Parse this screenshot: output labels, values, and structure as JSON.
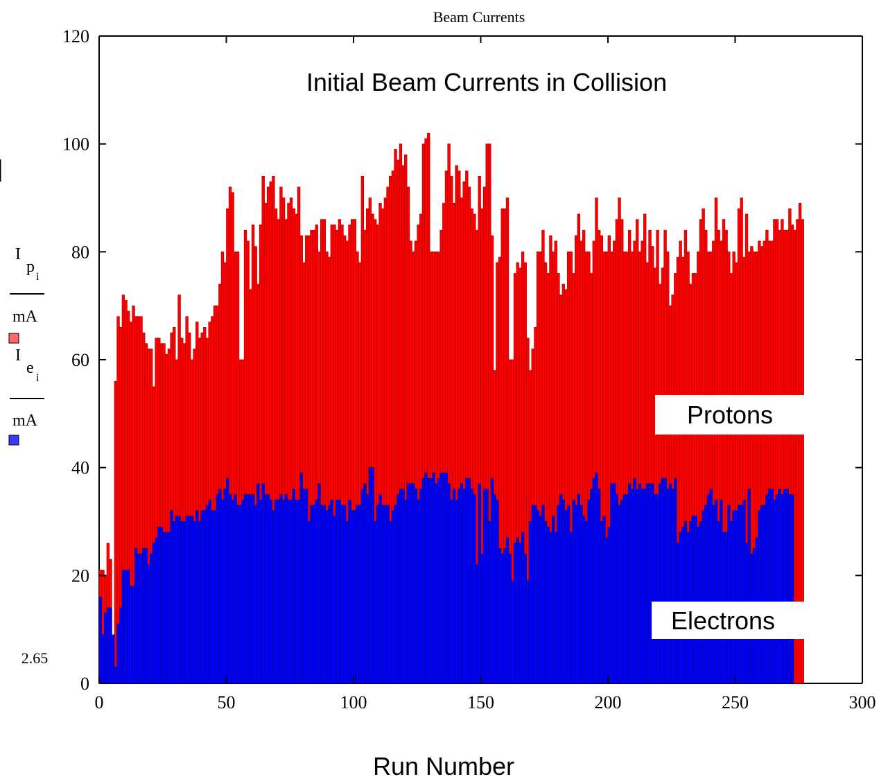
{
  "chart_data": {
    "type": "bar",
    "window_title": "Beam Currents",
    "title": "Initial Beam Currents in Collision",
    "xlabel": "Run Number",
    "ylabel": {
      "protons": {
        "symbol": "I",
        "subscript": "p",
        "index": "i",
        "unit": "mA"
      },
      "electrons": {
        "symbol": "I",
        "subscript": "e",
        "index": "i",
        "unit": "mA"
      }
    },
    "xlim": [
      0,
      300
    ],
    "ylim": [
      0,
      120
    ],
    "xticks": [
      "0",
      "50",
      "100",
      "150",
      "200",
      "250",
      "300"
    ],
    "yticks": [
      "0",
      "20",
      "40",
      "60",
      "80",
      "100",
      "120"
    ],
    "ymin_readout": "2.65",
    "grid": false,
    "overlay": true,
    "annotations": [
      "Protons",
      "Electrons"
    ],
    "series": [
      {
        "name": "Protons",
        "color": "#ff0000",
        "values": [
          21,
          21,
          20,
          26,
          23,
          6,
          56,
          68,
          66,
          72,
          71,
          69,
          67,
          70,
          68,
          68,
          68,
          65,
          63,
          62,
          62,
          55,
          64,
          64,
          63,
          63,
          61,
          62,
          65,
          66,
          60,
          72,
          64,
          63,
          68,
          65,
          60,
          62,
          67,
          64,
          65,
          66,
          64,
          67,
          68,
          70,
          70,
          74,
          80,
          78,
          88,
          92,
          91,
          80,
          80,
          60,
          60,
          84,
          82,
          73,
          85,
          81,
          74,
          85,
          94,
          89,
          92,
          93,
          94,
          88,
          86,
          92,
          90,
          86,
          89,
          90,
          88,
          87,
          92,
          83,
          78,
          83,
          83,
          84,
          84,
          85,
          80,
          86,
          86,
          80,
          79,
          85,
          85,
          84,
          86,
          85,
          83,
          82,
          85,
          86,
          86,
          80,
          78,
          94,
          84,
          88,
          90,
          87,
          86,
          85,
          89,
          88,
          90,
          92,
          94,
          95,
          99,
          97,
          100,
          96,
          98,
          92,
          82,
          80,
          82,
          85,
          87,
          100,
          101,
          102,
          80,
          80,
          80,
          80,
          84,
          89,
          95,
          100,
          94,
          89,
          96,
          95,
          90,
          93,
          95,
          92,
          88,
          87,
          84,
          94,
          88,
          92,
          100,
          100,
          83,
          58,
          78,
          79,
          88,
          88,
          90,
          60,
          60,
          76,
          78,
          77,
          80,
          78,
          64,
          58,
          62,
          66,
          80,
          80,
          84,
          78,
          76,
          83,
          80,
          82,
          76,
          72,
          74,
          73,
          80,
          80,
          76,
          83,
          87,
          82,
          84,
          80,
          80,
          76,
          82,
          90,
          84,
          83,
          80,
          80,
          83,
          80,
          82,
          86,
          90,
          86,
          80,
          80,
          84,
          80,
          82,
          86,
          80,
          82,
          87,
          78,
          84,
          81,
          77,
          84,
          74,
          77,
          84,
          80,
          70,
          72,
          76,
          79,
          82,
          79,
          84,
          80,
          74,
          76,
          76,
          80,
          86,
          88,
          84,
          80,
          80,
          82,
          90,
          84,
          82,
          86,
          84,
          80,
          76,
          80,
          78,
          88,
          90,
          79,
          87,
          80,
          81,
          80,
          80,
          82,
          81,
          82,
          84,
          82,
          82,
          86,
          86,
          84,
          86,
          84,
          84,
          88,
          85,
          84,
          86,
          89,
          86
        ],
        "values_note": ""
      },
      {
        "name": "Electrons",
        "color": "#0000ff",
        "values": [
          16,
          9,
          13,
          14,
          14,
          9,
          3,
          11,
          14,
          21,
          21,
          21,
          18,
          18,
          25,
          24,
          24,
          25,
          25,
          22,
          24,
          26,
          27,
          29,
          29,
          28,
          28,
          28,
          32,
          30,
          31,
          31,
          30,
          30,
          31,
          31,
          31,
          30,
          32,
          30,
          32,
          32,
          33,
          34,
          32,
          32,
          35,
          36,
          34,
          36,
          38,
          35,
          34,
          35,
          33,
          33,
          34,
          35,
          35,
          35,
          35,
          33,
          37,
          34,
          37,
          35,
          35,
          34,
          32,
          34,
          34,
          35,
          34,
          35,
          34,
          34,
          36,
          34,
          34,
          39,
          36,
          36,
          30,
          33,
          33,
          34,
          37,
          33,
          33,
          32,
          33,
          34,
          31,
          34,
          34,
          33,
          33,
          30,
          34,
          32,
          32,
          33,
          33,
          36,
          37,
          35,
          40,
          40,
          30,
          33,
          35,
          33,
          33,
          33,
          30,
          32,
          33,
          35,
          36,
          36,
          34,
          37,
          37,
          37,
          36,
          34,
          36,
          38,
          39,
          38,
          38,
          39,
          37,
          38,
          39,
          39,
          39,
          37,
          34,
          36,
          34,
          36,
          37,
          36,
          38,
          38,
          36,
          35,
          22,
          37,
          24,
          36,
          36,
          30,
          38,
          35,
          34,
          25,
          24,
          25,
          27,
          24,
          19,
          26,
          27,
          26,
          28,
          24,
          19,
          30,
          33,
          33,
          32,
          31,
          33,
          30,
          29,
          28,
          31,
          28,
          33,
          35,
          34,
          32,
          33,
          28,
          34,
          33,
          35,
          33,
          31,
          30,
          34,
          36,
          38,
          39,
          36,
          30,
          31,
          27,
          29,
          37,
          37,
          35,
          33,
          34,
          35,
          35,
          37,
          36,
          38,
          36,
          37,
          36,
          36,
          37,
          37,
          37,
          35,
          35,
          37,
          38,
          38,
          36,
          37,
          36,
          38,
          26,
          28,
          29,
          30,
          28,
          30,
          31,
          31,
          29,
          30,
          32,
          33,
          35,
          36,
          33,
          34,
          30,
          34,
          28,
          28,
          33,
          30,
          32,
          32,
          33,
          33,
          34,
          26,
          36,
          24,
          25,
          27,
          32,
          33,
          33,
          35,
          36,
          36,
          34,
          35,
          36,
          35,
          36,
          36,
          35,
          35
        ]
      }
    ]
  }
}
